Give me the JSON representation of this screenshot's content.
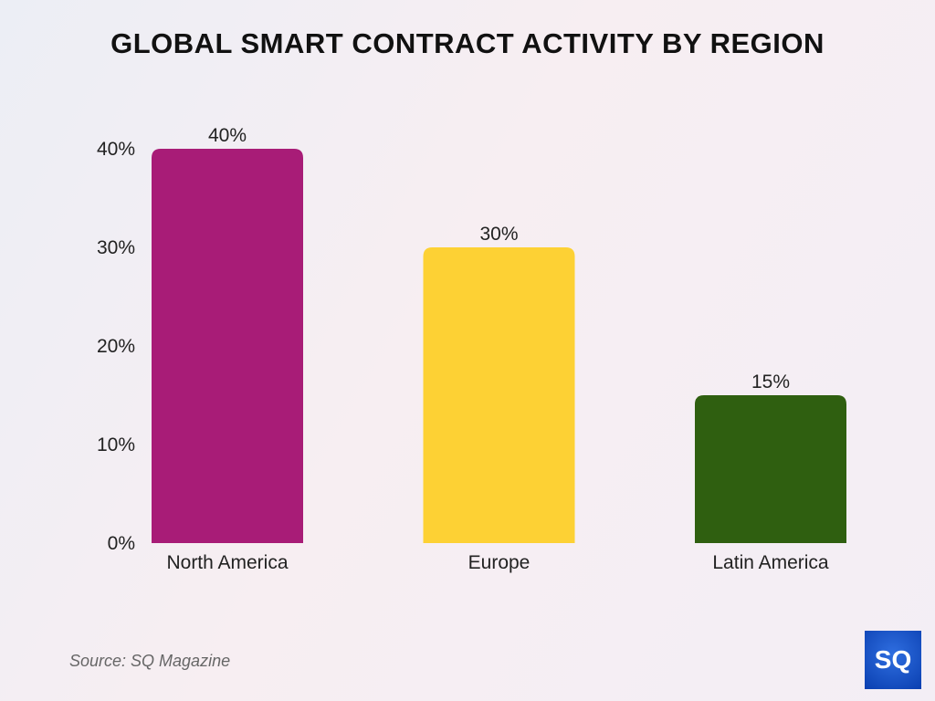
{
  "chart_data": {
    "type": "bar",
    "title": "GLOBAL SMART CONTRACT ACTIVITY BY REGION",
    "categories": [
      "North America",
      "Europe",
      "Latin America"
    ],
    "values": [
      40,
      30,
      15
    ],
    "value_labels": [
      "40%",
      "30%",
      "15%"
    ],
    "colors": [
      "#a81c77",
      "#fdd134",
      "#2f5f10"
    ],
    "xlabel": "",
    "ylabel": "",
    "ylim": [
      0,
      40
    ],
    "yticks": [
      0,
      10,
      20,
      30,
      40
    ],
    "ytick_labels": [
      "0%",
      "10%",
      "20%",
      "30%",
      "40%"
    ],
    "grid": false
  },
  "source": "Source: SQ Magazine",
  "logo_text": "SQ"
}
